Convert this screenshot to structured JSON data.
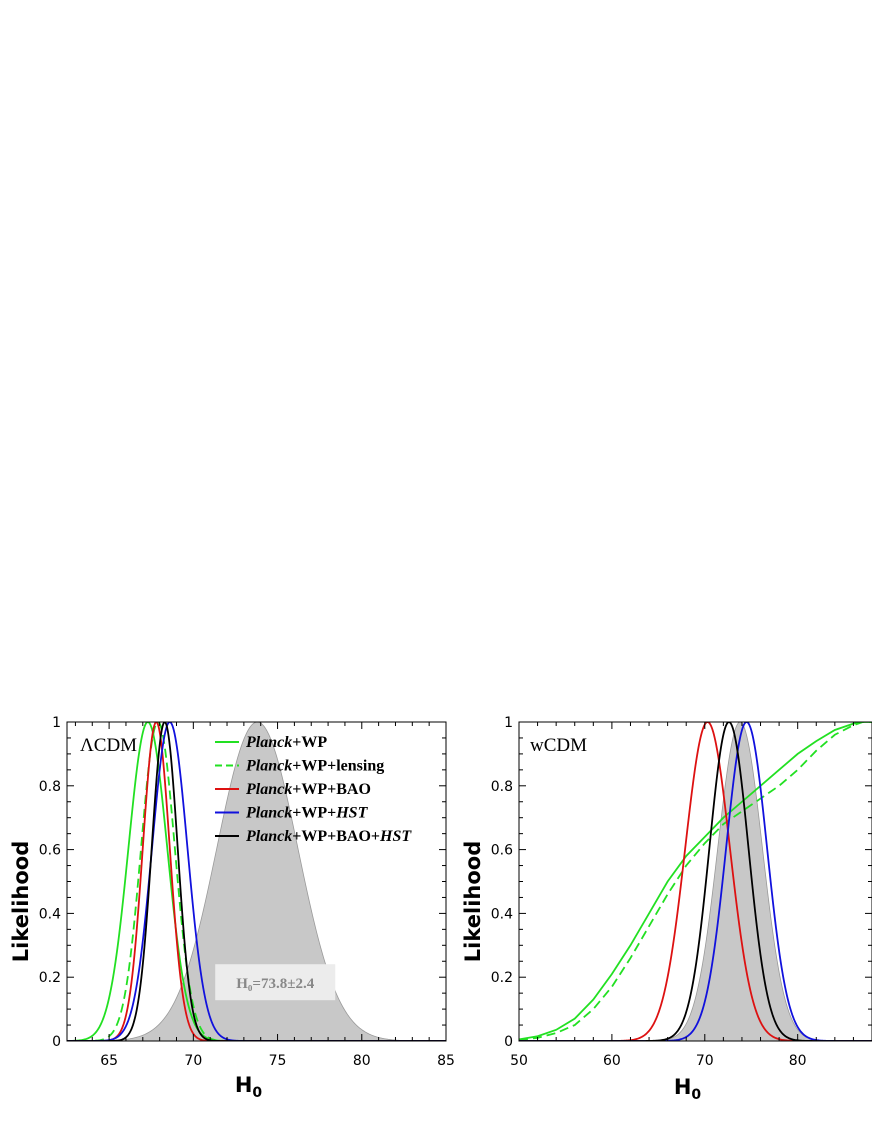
{
  "chart_data": [
    {
      "type": "line",
      "panel_label": "ΛCDM",
      "xlabel": "H",
      "xlabel_sub": "0",
      "ylabel": "Likelihood",
      "xlim": [
        62.5,
        85
      ],
      "ylim": [
        0,
        1
      ],
      "xticks": [
        65,
        70,
        75,
        80,
        85
      ],
      "yticks": [
        0,
        0.2,
        0.4,
        0.6,
        0.8,
        1
      ],
      "yticklabels": [
        "0",
        "0.2",
        "0.4",
        "0.6",
        "0.8",
        "1"
      ],
      "legend_position": "top-right",
      "shaded_distribution": {
        "mean": 73.8,
        "sigma": 2.4,
        "label": "H₀=73.8±2.4",
        "color": "#c8c8c8"
      },
      "series": [
        {
          "name": "Planck+WP",
          "name_italic": "Planck",
          "name_rest": "+WP",
          "color": "#22e022",
          "dash": "",
          "mean": 67.3,
          "sigma": 1.15
        },
        {
          "name": "Planck+WP+lensing",
          "name_italic": "Planck",
          "name_rest": "+WP+lensing",
          "color": "#22e022",
          "dash": "9,5",
          "mean": 67.9,
          "sigma": 1.0
        },
        {
          "name": "Planck+WP+BAO",
          "name_italic": "Planck",
          "name_rest": "+WP+BAO",
          "color": "#dd1111",
          "dash": "",
          "mean": 67.8,
          "sigma": 0.8
        },
        {
          "name": "Planck+WP+HST",
          "name_italic": "Planck",
          "name_rest": "+WP+",
          "name_italic2": "HST",
          "color": "#1111dd",
          "dash": "",
          "mean": 68.6,
          "sigma": 1.05
        },
        {
          "name": "Planck+WP+BAO+HST",
          "name_italic": "Planck",
          "name_rest": "+WP+BAO+",
          "name_italic2": "HST",
          "color": "#000000",
          "dash": "",
          "mean": 68.3,
          "sigma": 0.77
        }
      ]
    },
    {
      "type": "line",
      "panel_label": "wCDM",
      "xlabel": "H",
      "xlabel_sub": "0",
      "ylabel": "Likelihood",
      "xlim": [
        50,
        88
      ],
      "ylim": [
        0,
        1
      ],
      "xticks": [
        50,
        60,
        70,
        80
      ],
      "yticks": [
        0,
        0.2,
        0.4,
        0.6,
        0.8,
        1
      ],
      "yticklabels": [
        "0",
        "0.2",
        "0.4",
        "0.6",
        "0.8",
        "1"
      ],
      "shaded_distribution": {
        "mean": 73.8,
        "sigma": 2.4,
        "color": "#c8c8c8"
      },
      "series": [
        {
          "name": "Planck+WP",
          "color": "#22e022",
          "dash": "",
          "points": [
            [
              50,
              0.005
            ],
            [
              52,
              0.015
            ],
            [
              54,
              0.035
            ],
            [
              56,
              0.07
            ],
            [
              58,
              0.13
            ],
            [
              60,
              0.21
            ],
            [
              62,
              0.3
            ],
            [
              64,
              0.4
            ],
            [
              66,
              0.5
            ],
            [
              68,
              0.58
            ],
            [
              70,
              0.64
            ],
            [
              72,
              0.7
            ],
            [
              74,
              0.75
            ],
            [
              76,
              0.8
            ],
            [
              78,
              0.85
            ],
            [
              80,
              0.9
            ],
            [
              82,
              0.94
            ],
            [
              84,
              0.975
            ],
            [
              86,
              0.995
            ],
            [
              87,
              1.0
            ],
            [
              88,
              1.0
            ]
          ]
        },
        {
          "name": "Planck+WP+lensing",
          "color": "#22e022",
          "dash": "9,5",
          "points": [
            [
              50,
              0.003
            ],
            [
              52,
              0.01
            ],
            [
              54,
              0.025
            ],
            [
              56,
              0.05
            ],
            [
              58,
              0.1
            ],
            [
              60,
              0.17
            ],
            [
              62,
              0.26
            ],
            [
              64,
              0.36
            ],
            [
              66,
              0.46
            ],
            [
              68,
              0.55
            ],
            [
              70,
              0.62
            ],
            [
              72,
              0.68
            ],
            [
              74,
              0.72
            ],
            [
              76,
              0.76
            ],
            [
              78,
              0.8
            ],
            [
              80,
              0.85
            ],
            [
              82,
              0.91
            ],
            [
              84,
              0.96
            ],
            [
              86,
              0.99
            ],
            [
              87,
              1.0
            ],
            [
              88,
              1.0
            ]
          ]
        },
        {
          "name": "Planck+WP+BAO",
          "color": "#dd1111",
          "dash": "",
          "mean": 70.3,
          "sigma": 2.4
        },
        {
          "name": "Planck+WP+HST",
          "color": "#1111dd",
          "dash": "",
          "mean": 74.5,
          "sigma": 2.2
        },
        {
          "name": "Planck+WP+BAO+HST",
          "color": "#000000",
          "dash": "",
          "mean": 72.6,
          "sigma": 2.1
        }
      ]
    }
  ]
}
